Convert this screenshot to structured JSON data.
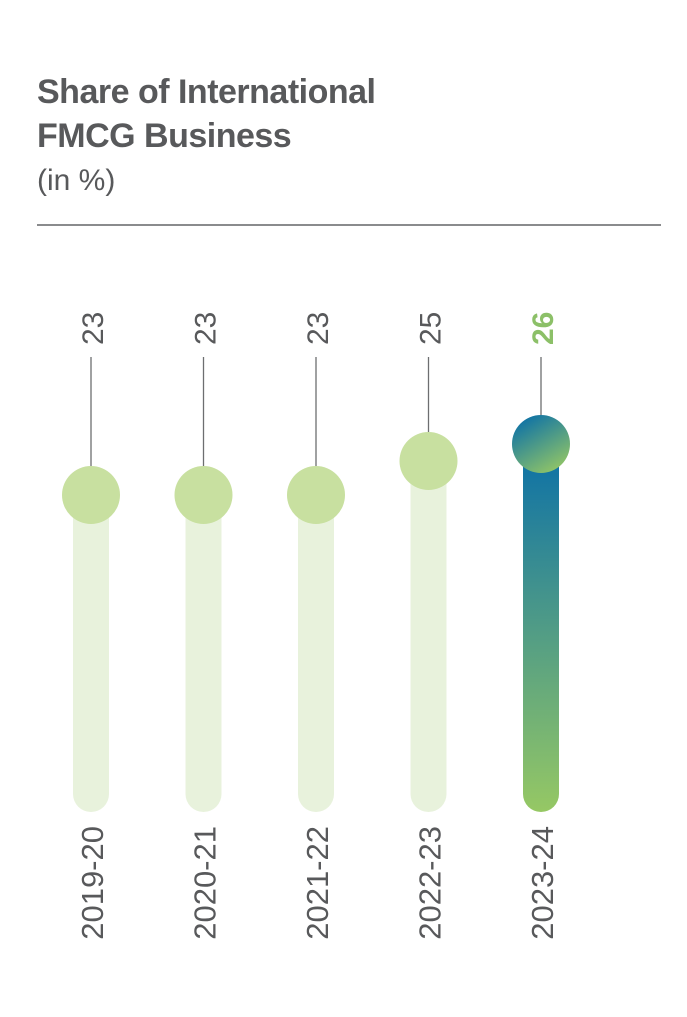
{
  "title_line1": "Share of International",
  "title_line2": "FMCG Business",
  "subtitle": "(in %)",
  "colors": {
    "track": "#e8f2dc",
    "dot": "#c8e0a0",
    "text": "#58595b",
    "highlight_text": "#8cc068",
    "gradient_top": "#0a6fa8",
    "gradient_bottom": "#96c864",
    "leader": "#6d6e70"
  },
  "chart_data": {
    "type": "bar",
    "title": "Share of International FMCG Business",
    "subtitle": "(in %)",
    "categories": [
      "2019-20",
      "2020-21",
      "2021-22",
      "2022-23",
      "2023-24"
    ],
    "values": [
      23,
      23,
      23,
      25,
      26
    ],
    "highlighted_index": 4
  }
}
